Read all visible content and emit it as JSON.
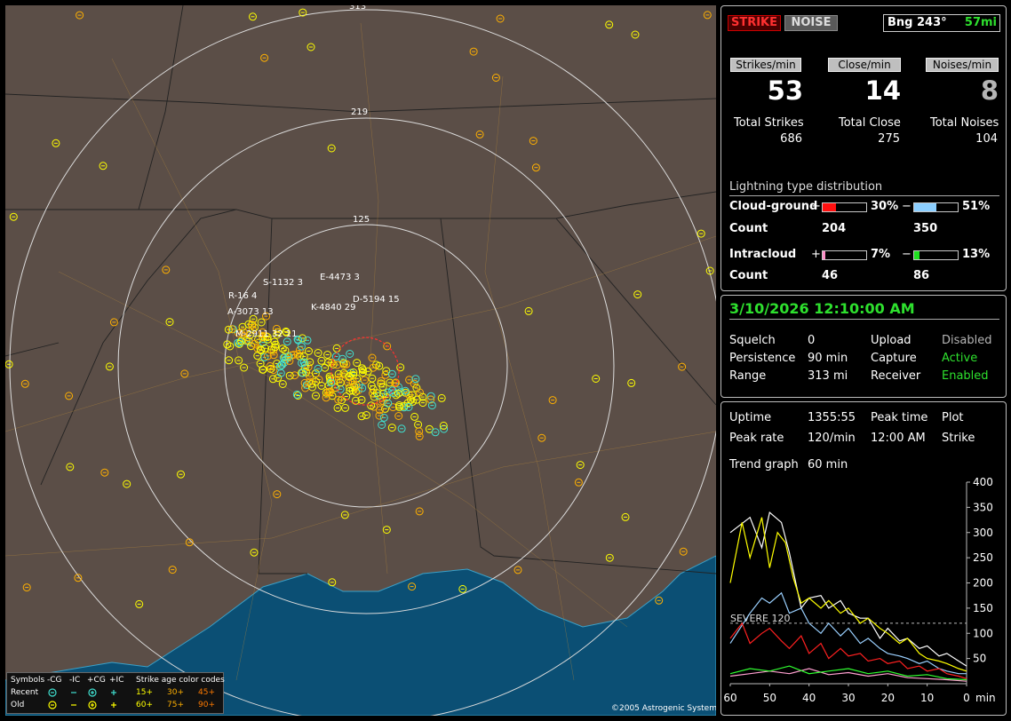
{
  "map": {
    "range_labels": [
      "313",
      "219",
      "125"
    ],
    "copyright": "©2005 Astrogenic Systems",
    "storm_labels": [
      "R-16 4",
      "S-1132 3",
      "E-4473 3",
      "A-3073 13",
      "K-4840 29",
      "D-5194 15",
      "M-2911 32 11"
    ]
  },
  "legend": {
    "symbols_label": "Symbols",
    "cols": [
      "-CG",
      "-IC",
      "+CG",
      "+IC"
    ],
    "age_title": "Strike age color codes",
    "recent_label": "Recent",
    "old_label": "Old",
    "recent_ages": [
      "15+",
      "30+",
      "45+"
    ],
    "old_ages": [
      "60+",
      "75+",
      "90+"
    ],
    "age_colors": [
      "#ffff00",
      "#ffb000",
      "#ff7a00"
    ]
  },
  "top": {
    "strike_btn": "STRIKE",
    "noise_btn": "NOISE",
    "bearing": "Bng 243°",
    "distance": "57mi",
    "strikes_min_label": "Strikes/min",
    "close_min_label": "Close/min",
    "noises_min_label": "Noises/min",
    "strikes_min": "53",
    "close_min": "14",
    "noises_min": "8",
    "total_strikes_label": "Total Strikes",
    "total_close_label": "Total Close",
    "total_noises_label": "Total Noises",
    "total_strikes": "686",
    "total_close": "275",
    "total_noises": "104",
    "dist_title": "Lightning type distribution",
    "cg_label": "Cloud-ground",
    "ic_label": "Intracloud",
    "count_label": "Count",
    "plus": "+",
    "minus": "−",
    "cg_pos_pct": "30%",
    "cg_neg_pct": "51%",
    "cg_pos_count": "204",
    "cg_neg_count": "350",
    "ic_pos_pct": "7%",
    "ic_neg_pct": "13%",
    "ic_pos_count": "46",
    "ic_neg_count": "86",
    "cg_pos_fill": 0.3,
    "cg_neg_fill": 0.51,
    "ic_pos_fill": 0.07,
    "ic_neg_fill": 0.13
  },
  "status": {
    "datetime": "3/10/2026 12:10:00 AM",
    "squelch_label": "Squelch",
    "squelch": "0",
    "persistence_label": "Persistence",
    "persistence": "90 min",
    "range_label": "Range",
    "range": "313 mi",
    "upload_label": "Upload",
    "upload": "Disabled",
    "capture_label": "Capture",
    "capture": "Active",
    "receiver_label": "Receiver",
    "receiver": "Enabled"
  },
  "trend": {
    "uptime_label": "Uptime",
    "uptime": "1355:55",
    "peak_time_label": "Peak time",
    "peak_time": "12:00 AM",
    "plot_label": "Plot",
    "plot": "Strike",
    "peak_rate_label": "Peak rate",
    "peak_rate": "120/min",
    "trend_graph_label": "Trend graph",
    "trend_graph": "60 min",
    "severe_label": "SEVERE 120"
  },
  "chart_data": {
    "type": "line",
    "xlabel": "min",
    "x_ticks": [
      "60",
      "50",
      "40",
      "30",
      "20",
      "10",
      "0"
    ],
    "y_ticks": [
      "400",
      "350",
      "300",
      "250",
      "200",
      "150",
      "100",
      "50"
    ],
    "ylim": [
      0,
      400
    ],
    "xlim": [
      60,
      0
    ],
    "severe_threshold": 120,
    "series": [
      {
        "color": "#ffffff",
        "x": [
          60,
          55,
          52,
          50,
          47,
          45,
          42,
          40,
          37,
          35,
          32,
          30,
          27,
          25,
          22,
          20,
          17,
          15,
          12,
          10,
          7,
          5,
          2,
          0
        ],
        "values": [
          300,
          330,
          270,
          340,
          320,
          260,
          150,
          170,
          175,
          150,
          165,
          140,
          130,
          130,
          90,
          110,
          85,
          90,
          70,
          75,
          55,
          60,
          45,
          35
        ]
      },
      {
        "color": "#ffff00",
        "x": [
          60,
          57,
          55,
          52,
          50,
          48,
          46,
          44,
          42,
          40,
          37,
          35,
          32,
          30,
          27,
          25,
          22,
          20,
          17,
          15,
          12,
          10,
          7,
          5,
          2,
          0
        ],
        "values": [
          200,
          320,
          250,
          330,
          230,
          300,
          280,
          210,
          160,
          170,
          150,
          165,
          140,
          150,
          120,
          130,
          110,
          100,
          80,
          90,
          60,
          50,
          45,
          40,
          30,
          25
        ]
      },
      {
        "color": "#9ad0ff",
        "x": [
          60,
          55,
          52,
          50,
          47,
          45,
          42,
          40,
          37,
          35,
          32,
          30,
          27,
          25,
          22,
          20,
          17,
          15,
          12,
          10,
          7,
          5,
          2,
          0
        ],
        "values": [
          80,
          140,
          170,
          160,
          180,
          140,
          150,
          120,
          100,
          120,
          95,
          110,
          80,
          90,
          70,
          60,
          55,
          50,
          40,
          45,
          30,
          25,
          20,
          20
        ]
      },
      {
        "color": "#ff2020",
        "x": [
          60,
          57,
          55,
          52,
          50,
          47,
          45,
          42,
          40,
          37,
          35,
          32,
          30,
          27,
          25,
          22,
          20,
          17,
          15,
          12,
          10,
          7,
          5,
          2,
          0
        ],
        "values": [
          90,
          120,
          80,
          100,
          110,
          85,
          70,
          95,
          60,
          80,
          50,
          70,
          55,
          60,
          45,
          50,
          40,
          45,
          30,
          35,
          25,
          30,
          20,
          15,
          10
        ]
      },
      {
        "color": "#ff9fd0",
        "x": [
          60,
          55,
          50,
          45,
          40,
          35,
          30,
          25,
          20,
          15,
          10,
          5,
          0
        ],
        "values": [
          15,
          20,
          25,
          20,
          30,
          18,
          22,
          15,
          20,
          12,
          10,
          8,
          5
        ]
      },
      {
        "color": "#30ff30",
        "x": [
          60,
          55,
          50,
          45,
          40,
          35,
          30,
          25,
          20,
          15,
          10,
          5,
          0
        ],
        "values": [
          20,
          30,
          25,
          35,
          20,
          25,
          30,
          20,
          25,
          15,
          18,
          10,
          8
        ]
      }
    ]
  }
}
